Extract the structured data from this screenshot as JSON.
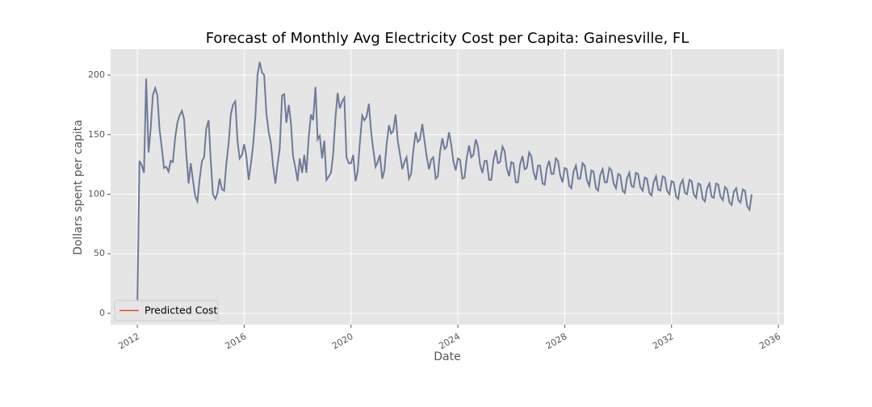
{
  "chart_data": {
    "type": "line",
    "title": "Forecast of Monthly Avg Electricity Cost per Capita: Gainesville, FL",
    "xlabel": "Date",
    "ylabel": "Dollars spent per capita",
    "x": [
      2012,
      2012.08,
      2012.17,
      2012.25,
      2012.33,
      2012.42,
      2012.5,
      2012.58,
      2012.67,
      2012.75,
      2012.83,
      2012.92,
      2013,
      2013.08,
      2013.17,
      2013.25,
      2013.33,
      2013.42,
      2013.5,
      2013.58,
      2013.67,
      2013.75,
      2013.83,
      2013.92,
      2014,
      2014.08,
      2014.17,
      2014.25,
      2014.33,
      2014.42,
      2014.5,
      2014.58,
      2014.67,
      2014.75,
      2014.83,
      2014.92,
      2015,
      2015.08,
      2015.17,
      2015.25,
      2015.33,
      2015.42,
      2015.5,
      2015.58,
      2015.67,
      2015.75,
      2015.83,
      2015.92,
      2016,
      2016.08,
      2016.17,
      2016.25,
      2016.33,
      2016.42,
      2016.5,
      2016.58,
      2016.67,
      2016.75,
      2016.83,
      2016.92,
      2017,
      2017.08,
      2017.17,
      2017.25,
      2017.33,
      2017.42,
      2017.5,
      2017.58,
      2017.67,
      2017.75,
      2017.83,
      2017.92,
      2018,
      2018.08,
      2018.17,
      2018.25,
      2018.33,
      2018.42,
      2018.5,
      2018.58,
      2018.67,
      2018.75,
      2018.83,
      2018.92,
      2019,
      2019.08,
      2019.17,
      2019.25,
      2019.33,
      2019.42,
      2019.5,
      2019.58,
      2019.67,
      2019.75,
      2019.83,
      2019.92,
      2020,
      2020.08,
      2020.17,
      2020.25,
      2020.33,
      2020.42,
      2020.5,
      2020.58,
      2020.67,
      2020.75,
      2020.83,
      2020.92,
      2021,
      2021.08,
      2021.17,
      2021.25,
      2021.33,
      2021.42,
      2021.5,
      2021.58,
      2021.67,
      2021.75,
      2021.83,
      2021.92,
      2022,
      2022.08,
      2022.17,
      2022.25,
      2022.33,
      2022.42,
      2022.5,
      2022.58,
      2022.67,
      2022.75,
      2022.83,
      2022.92,
      2023,
      2023.08,
      2023.17,
      2023.25,
      2023.33,
      2023.42,
      2023.5,
      2023.58,
      2023.67,
      2023.75,
      2023.83,
      2023.92,
      2024,
      2024.08,
      2024.17,
      2024.25,
      2024.33,
      2024.42,
      2024.5,
      2024.58,
      2024.67,
      2024.75,
      2024.83,
      2024.92,
      2025,
      2025.08,
      2025.17,
      2025.25,
      2025.33,
      2025.42,
      2025.5,
      2025.58,
      2025.67,
      2025.75,
      2025.83,
      2025.92,
      2026,
      2026.08,
      2026.17,
      2026.25,
      2026.33,
      2026.42,
      2026.5,
      2026.58,
      2026.67,
      2026.75,
      2026.83,
      2026.92,
      2027,
      2027.08,
      2027.17,
      2027.25,
      2027.33,
      2027.42,
      2027.5,
      2027.58,
      2027.67,
      2027.75,
      2027.83,
      2027.92,
      2028,
      2028.08,
      2028.17,
      2028.25,
      2028.33,
      2028.42,
      2028.5,
      2028.58,
      2028.67,
      2028.75,
      2028.83,
      2028.92,
      2029,
      2029.08,
      2029.17,
      2029.25,
      2029.33,
      2029.42,
      2029.5,
      2029.58,
      2029.67,
      2029.75,
      2029.83,
      2029.92,
      2030,
      2030.08,
      2030.17,
      2030.25,
      2030.33,
      2030.42,
      2030.5,
      2030.58,
      2030.67,
      2030.75,
      2030.83,
      2030.92,
      2031,
      2031.08,
      2031.17,
      2031.25,
      2031.33,
      2031.42,
      2031.5,
      2031.58,
      2031.67,
      2031.75,
      2031.83,
      2031.92,
      2032,
      2032.08,
      2032.17,
      2032.25,
      2032.33,
      2032.42,
      2032.5,
      2032.58,
      2032.67,
      2032.75,
      2032.83,
      2032.92,
      2033,
      2033.08,
      2033.17,
      2033.25,
      2033.33,
      2033.42,
      2033.5,
      2033.58,
      2033.67,
      2033.75,
      2033.83,
      2033.92,
      2034,
      2034.08,
      2034.17,
      2034.25,
      2034.33,
      2034.42,
      2034.5,
      2034.58,
      2034.67,
      2034.75,
      2034.83,
      2034.92,
      2035
    ],
    "series": [
      {
        "name": "Predicted Cost",
        "color": "#6d7b98",
        "values": [
          5,
          128,
          124,
          118,
          197,
          135,
          155,
          183,
          189,
          183,
          155,
          138,
          122,
          123,
          119,
          128,
          127,
          148,
          160,
          166,
          170,
          163,
          135,
          109,
          126,
          112,
          98,
          94,
          112,
          128,
          131,
          155,
          162,
          128,
          100,
          96,
          101,
          113,
          104,
          103,
          125,
          143,
          167,
          175,
          178,
          145,
          130,
          133,
          142,
          132,
          112,
          125,
          140,
          165,
          200,
          211,
          202,
          200,
          168,
          152,
          143,
          124,
          109,
          125,
          138,
          183,
          184,
          160,
          175,
          160,
          132,
          122,
          111,
          130,
          118,
          133,
          118,
          149,
          167,
          162,
          190,
          146,
          149,
          130,
          145,
          112,
          115,
          118,
          133,
          165,
          185,
          172,
          178,
          181,
          131,
          126,
          126,
          133,
          111,
          119,
          143,
          166,
          162,
          165,
          176,
          153,
          138,
          123,
          127,
          133,
          113,
          120,
          141,
          158,
          151,
          153,
          167,
          145,
          134,
          121,
          127,
          131,
          113,
          117,
          136,
          152,
          144,
          146,
          159,
          145,
          132,
          121,
          129,
          131,
          113,
          115,
          135,
          147,
          138,
          140,
          152,
          142,
          128,
          120,
          130,
          129,
          113,
          114,
          130,
          141,
          131,
          133,
          146,
          140,
          125,
          118,
          128,
          128,
          112,
          112,
          128,
          137,
          126,
          127,
          140,
          136,
          122,
          115,
          127,
          126,
          110,
          110,
          125,
          132,
          121,
          122,
          135,
          132,
          119,
          112,
          124,
          124,
          109,
          108,
          122,
          128,
          117,
          117,
          130,
          128,
          116,
          110,
          122,
          121,
          107,
          105,
          119,
          124,
          113,
          113,
          126,
          124,
          112,
          107,
          120,
          119,
          105,
          103,
          116,
          121,
          110,
          110,
          122,
          120,
          109,
          105,
          117,
          116,
          103,
          101,
          113,
          118,
          107,
          106,
          118,
          117,
          106,
          103,
          114,
          113,
          101,
          99,
          110,
          115,
          104,
          103,
          115,
          114,
          103,
          100,
          111,
          110,
          98,
          96,
          108,
          112,
          101,
          100,
          112,
          111,
          100,
          97,
          109,
          108,
          96,
          94,
          105,
          109,
          98,
          97,
          109,
          108,
          98,
          95,
          106,
          104,
          93,
          91,
          102,
          105,
          95,
          93,
          104,
          103,
          90,
          87,
          100
        ]
      }
    ],
    "legend_color": "#e24a33",
    "legend": "lower left",
    "xlim": [
      2011.0,
      2036.21
    ],
    "ylim": [
      -9.5,
      221.7
    ],
    "xticks": [
      2012,
      2016,
      2020,
      2024,
      2028,
      2032,
      2036
    ],
    "yticks": [
      0,
      50,
      100,
      150,
      200
    ],
    "grid": true
  }
}
